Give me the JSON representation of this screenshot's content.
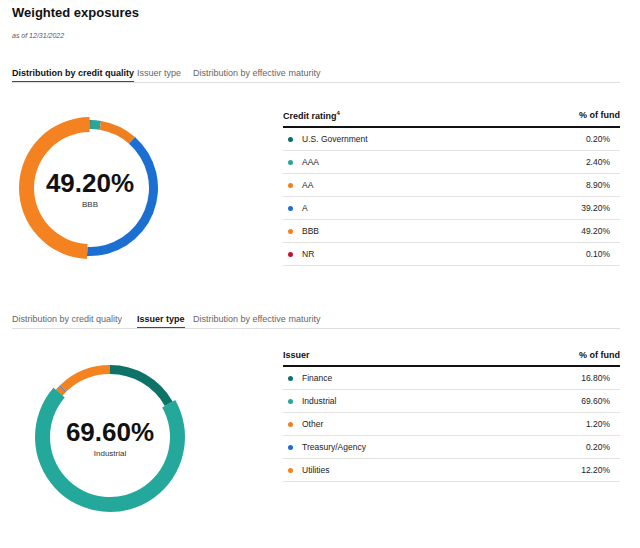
{
  "header": {
    "title": "Weighted exposures",
    "subtitle": "as of 12/31/2022"
  },
  "tabs": [
    "Distribution by credit quality",
    "Issuer type",
    "Distribution by effective maturity"
  ],
  "panels": [
    {
      "active_tab": "Distribution by credit quality",
      "table_header": [
        "Credit rating",
        "% of fund"
      ],
      "header_note": "4"
    },
    {
      "active_tab": "Issuer type",
      "table_header": [
        "Issuer",
        "% of fund"
      ]
    }
  ],
  "chart_data": [
    {
      "type": "pie",
      "categories": [
        "U.S. Government",
        "AAA",
        "AA",
        "A",
        "BBB",
        "NR"
      ],
      "values": [
        0.2,
        2.4,
        8.9,
        39.2,
        49.2,
        0.1
      ],
      "value_labels": [
        "0.20%",
        "2.40%",
        "8.90%",
        "39.20%",
        "49.20%",
        "0.10%"
      ],
      "colors": [
        "#0d6e66",
        "#2aa598",
        "#f07f22",
        "#1b6fd3",
        "#f58220",
        "#c8102e"
      ]
    },
    {
      "type": "pie",
      "categories": [
        "Finance",
        "Industrial",
        "Other",
        "Treasury/Agency",
        "Utilities"
      ],
      "values": [
        16.8,
        69.6,
        1.2,
        0.2,
        12.2
      ],
      "value_labels": [
        "16.80%",
        "69.60%",
        "1.20%",
        "0.20%",
        "12.20%"
      ],
      "colors": [
        "#0d7369",
        "#24a89c",
        "#f07f22",
        "#1b6fd3",
        "#f58220"
      ]
    }
  ]
}
